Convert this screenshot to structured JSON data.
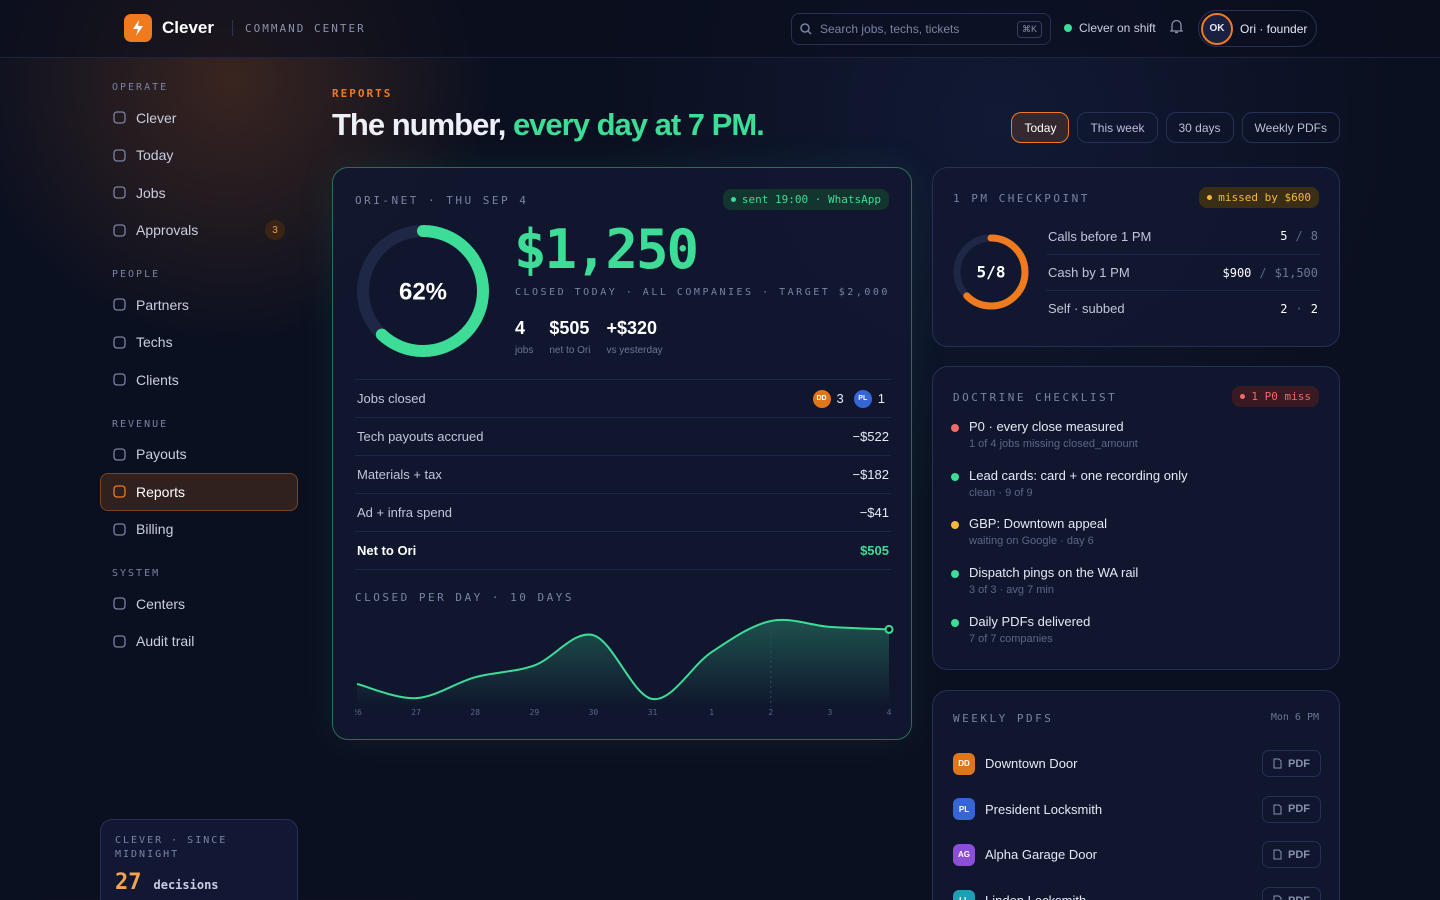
{
  "brand": {
    "name": "Clever",
    "subtitle": "COMMAND CENTER"
  },
  "topbar": {
    "search_placeholder": "Search jobs, techs, tickets",
    "shortcut": "⌘K",
    "status": "Clever on shift",
    "user_initials": "OK",
    "user": "Ori · founder"
  },
  "sidebar": {
    "sections": [
      {
        "title": "OPERATE",
        "items": [
          {
            "label": "Clever"
          },
          {
            "label": "Today"
          },
          {
            "label": "Jobs"
          },
          {
            "label": "Approvals",
            "badge": 3
          }
        ]
      },
      {
        "title": "PEOPLE",
        "items": [
          {
            "label": "Partners"
          },
          {
            "label": "Techs"
          },
          {
            "label": "Clients"
          }
        ]
      },
      {
        "title": "REVENUE",
        "items": [
          {
            "label": "Payouts"
          },
          {
            "label": "Reports",
            "active": true
          },
          {
            "label": "Billing"
          }
        ]
      },
      {
        "title": "SYSTEM",
        "items": [
          {
            "label": "Centers"
          },
          {
            "label": "Audit trail"
          }
        ]
      }
    ],
    "footer": {
      "title": "CLEVER · SINCE MIDNIGHT",
      "count": 27,
      "unit": "decisions"
    }
  },
  "header": {
    "eyebrow": "REPORTS",
    "title": "The number,",
    "title_highlight": "every day at 7 PM.",
    "tabs": [
      {
        "label": "Today",
        "active": true
      },
      {
        "label": "This week"
      },
      {
        "label": "30 days"
      },
      {
        "label": "Weekly PDFs"
      }
    ]
  },
  "main_card": {
    "title": "ORI-NET · THU SEP 4",
    "pill": "sent 19:00 · WhatsApp",
    "gauge": {
      "value": 62,
      "label": "62%"
    },
    "amount": "$1,250",
    "caption": "CLOSED TODAY · ALL COMPANIES · TARGET $2,000",
    "stats": [
      {
        "value": 4,
        "label": "jobs"
      },
      {
        "value": "$505",
        "label": "net to Ori"
      },
      {
        "value": "+$320",
        "label": "vs yesterday"
      }
    ],
    "rows": [
      {
        "label": "Jobs closed",
        "badges": [
          {
            "initials": "DD",
            "count": 3,
            "color": "#e0761c"
          },
          {
            "initials": "PL",
            "count": 1,
            "color": "#3566d4"
          }
        ]
      },
      {
        "label": "Tech payouts accrued",
        "value": "−$522"
      },
      {
        "label": "Materials + tax",
        "value": "−$182"
      },
      {
        "label": "Ad + infra spend",
        "value": "−$41"
      },
      {
        "label": "Net to Ori",
        "value": "$505",
        "total": true
      }
    ],
    "chart": {
      "type": "line",
      "title": "CLOSED PER DAY · 10 DAYS",
      "color": "#3ddc97",
      "x": [
        "26",
        "27",
        "28",
        "29",
        "30",
        "31",
        "1",
        "2",
        "3",
        "4"
      ],
      "values": [
        20,
        3,
        28,
        42,
        78,
        2,
        58,
        95,
        88,
        85
      ]
    }
  },
  "checkpoint": {
    "title": "1 PM CHECKPOINT",
    "pill": "missed by $600",
    "ring_label": "5/8",
    "rows": [
      {
        "label": "Calls before 1 PM",
        "value": 5,
        "sep": "/",
        "target": 8
      },
      {
        "label": "Cash by 1 PM",
        "value": "$900",
        "sep": "/",
        "target": "$1,500"
      },
      {
        "label": "Self · subbed",
        "value": 2,
        "sep": "·",
        "target": 2
      }
    ]
  },
  "doctrine": {
    "title": "DOCTRINE CHECKLIST",
    "pill": "1 P0 miss",
    "items": [
      {
        "title": "P0 · every close measured",
        "sub": "1 of 4 jobs missing closed_amount",
        "color": "#f06a6a"
      },
      {
        "title": "Lead cards: card + one recording only",
        "sub": "clean · 9 of 9",
        "color": "#3ddc97"
      },
      {
        "title": "GBP: Downtown appeal",
        "sub": "waiting on Google · day 6",
        "color": "#f5b83d"
      },
      {
        "title": "Dispatch pings on the WA rail",
        "sub": "3 of 3 · avg 7 min",
        "color": "#3ddc97"
      },
      {
        "title": "Daily PDFs delivered",
        "sub": "7 of 7 companies",
        "color": "#3ddc97"
      }
    ]
  },
  "weekly": {
    "title": "WEEKLY PDFS",
    "meta": "Mon 6 PM",
    "items": [
      {
        "initials": "DD",
        "name": "Downtown Door",
        "action": "PDF",
        "color": "#e0761c"
      },
      {
        "initials": "PL",
        "name": "President Locksmith",
        "action": "PDF",
        "color": "#3566d4"
      },
      {
        "initials": "AG",
        "name": "Alpha Garage Door",
        "action": "PDF",
        "color": "#8a4fd6"
      },
      {
        "initials": "LL",
        "name": "Linden Locksmith",
        "action": "PDF",
        "color": "#1f9fb5"
      }
    ]
  }
}
